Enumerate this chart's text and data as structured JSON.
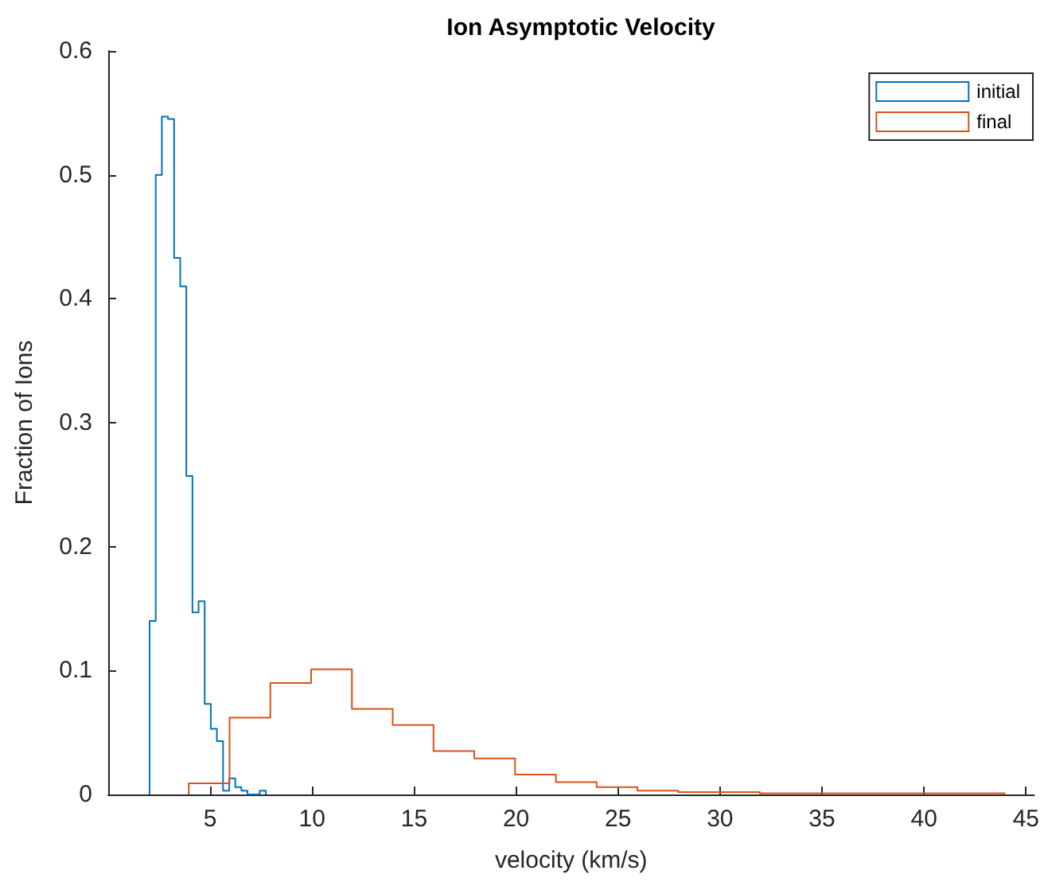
{
  "chart_data": {
    "type": "step",
    "title": "Ion Asymptotic Velocity",
    "xlabel": "velocity (km/s)",
    "ylabel": "Fraction of Ions",
    "xlim": [
      0,
      45.4
    ],
    "xticks": [
      5,
      10,
      15,
      20,
      25,
      30,
      35,
      40,
      45
    ],
    "ylim": [
      0,
      0.6
    ],
    "yticks": [
      0,
      0.1,
      0.2,
      0.3,
      0.4,
      0.5,
      0.6
    ],
    "grid": false,
    "legend": "top right",
    "marker": "none",
    "series": [
      {
        "name": "initial",
        "color": "#0072bd",
        "x": [
          2.03,
          2.03,
          2.33,
          2.63,
          2.93,
          3.23,
          3.53,
          3.83,
          4.13,
          4.43,
          4.73,
          5.03,
          5.33,
          5.63,
          5.93,
          6.23,
          6.53,
          6.83,
          7.13,
          7.43,
          7.73
        ],
        "values": [
          0,
          0.14,
          0.5,
          0.547,
          0.545,
          0.433,
          0.41,
          0.257,
          0.147,
          0.156,
          0.073,
          0.053,
          0.043,
          0.003,
          0.013,
          0.006,
          0.003,
          0,
          0,
          0.003,
          0
        ]
      },
      {
        "name": "final",
        "color": "#d95319",
        "x": [
          3.95,
          3.95,
          5.95,
          7.95,
          9.95,
          11.95,
          13.95,
          15.95,
          17.95,
          19.95,
          21.95,
          23.95,
          25.95,
          27.95,
          29.95,
          31.95,
          33.95,
          35.95,
          37.95,
          39.95,
          41.95,
          43.95
        ],
        "values": [
          0,
          0.009,
          0.062,
          0.09,
          0.101,
          0.069,
          0.056,
          0.035,
          0.029,
          0.016,
          0.01,
          0.006,
          0.003,
          0.002,
          0.002,
          0.001,
          0.001,
          0.001,
          0.001,
          0.001,
          0.001,
          0
        ]
      }
    ]
  }
}
